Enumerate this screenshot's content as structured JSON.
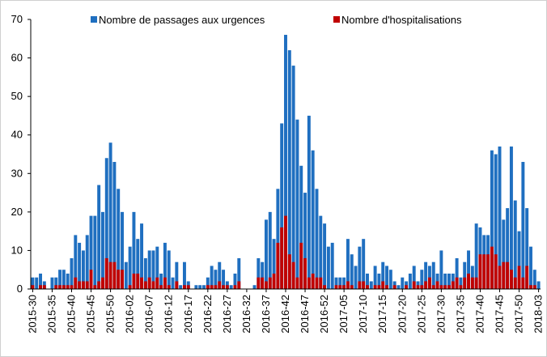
{
  "chart_data": {
    "type": "bar",
    "overlap": true,
    "categories": [
      "2015-30",
      null,
      null,
      null,
      null,
      "2015-35",
      null,
      null,
      null,
      null,
      "2015-40",
      null,
      null,
      null,
      null,
      "2015-45",
      null,
      null,
      null,
      null,
      "2015-50",
      null,
      null,
      null,
      null,
      "2016-02",
      null,
      null,
      null,
      null,
      "2016-07",
      null,
      null,
      null,
      null,
      "2016-12",
      null,
      null,
      null,
      null,
      "2016-17",
      null,
      null,
      null,
      null,
      "2016-22",
      null,
      null,
      null,
      null,
      "2016-27",
      null,
      null,
      null,
      null,
      "2016-32",
      null,
      null,
      null,
      null,
      "2016-37",
      null,
      null,
      null,
      null,
      "2016-42",
      null,
      null,
      null,
      null,
      "2016-47",
      null,
      null,
      null,
      null,
      "2016-52",
      null,
      null,
      null,
      null,
      "2017-05",
      null,
      null,
      null,
      null,
      "2017-10",
      null,
      null,
      null,
      null,
      "2017-15",
      null,
      null,
      null,
      null,
      "2017-20",
      null,
      null,
      null,
      null,
      "2017-25",
      null,
      null,
      null,
      null,
      "2017-30",
      null,
      null,
      null,
      null,
      "2017-35",
      null,
      null,
      null,
      null,
      "2017-40",
      null,
      null,
      null,
      null,
      "2017-45",
      null,
      null,
      null,
      null,
      "2017-50",
      null,
      null,
      null,
      null,
      "2018-03"
    ],
    "series": [
      {
        "name": "Nombre de passages aux urgences",
        "color": "#1f6fc0",
        "values": [
          3,
          3,
          4,
          2,
          0,
          3,
          3,
          5,
          5,
          4,
          8,
          14,
          12,
          10,
          14,
          19,
          19,
          27,
          20,
          34,
          38,
          33,
          26,
          20,
          7,
          11,
          20,
          13,
          17,
          8,
          10,
          10,
          11,
          4,
          12,
          10,
          3,
          7,
          1,
          7,
          2,
          0,
          1,
          1,
          1,
          3,
          6,
          5,
          7,
          5,
          2,
          1,
          4,
          8,
          0,
          0,
          0,
          1,
          8,
          7,
          18,
          20,
          13,
          26,
          43,
          66,
          62,
          58,
          44,
          32,
          25,
          45,
          36,
          26,
          19,
          17,
          11,
          12,
          3,
          3,
          3,
          13,
          9,
          6,
          11,
          13,
          4,
          2,
          6,
          4,
          7,
          6,
          5,
          2,
          1,
          3,
          2,
          4,
          6,
          2,
          5,
          7,
          6,
          7,
          4,
          10,
          4,
          4,
          4,
          8,
          3,
          7,
          10,
          6,
          17,
          16,
          14,
          14,
          36,
          35,
          37,
          18,
          21,
          37,
          23,
          15,
          33,
          21,
          11,
          5,
          2
        ]
      },
      {
        "name": "Nombre d'hospitalisations",
        "color": "#c00000",
        "values": [
          1,
          0,
          1,
          1,
          0,
          0,
          1,
          1,
          1,
          1,
          1,
          3,
          2,
          2,
          2,
          5,
          1,
          2,
          3,
          8,
          7,
          7,
          5,
          5,
          0,
          1,
          4,
          4,
          3,
          2,
          3,
          2,
          3,
          1,
          3,
          1,
          0,
          2,
          0,
          1,
          1,
          0,
          0,
          0,
          0,
          1,
          1,
          1,
          2,
          1,
          1,
          0,
          1,
          2,
          0,
          0,
          0,
          0,
          3,
          3,
          2,
          3,
          4,
          12,
          16,
          19,
          9,
          7,
          3,
          12,
          8,
          3,
          4,
          3,
          3,
          1,
          0,
          0,
          1,
          1,
          1,
          2,
          1,
          0,
          2,
          2,
          1,
          0,
          1,
          1,
          2,
          1,
          0,
          1,
          0,
          0,
          1,
          0,
          2,
          1,
          1,
          2,
          3,
          1,
          2,
          1,
          1,
          1,
          2,
          3,
          1,
          3,
          4,
          3,
          3,
          9,
          9,
          9,
          11,
          9,
          6,
          7,
          7,
          5,
          3,
          6,
          3,
          6,
          1,
          1,
          0
        ]
      }
    ],
    "ylim": [
      0,
      70
    ],
    "yticks": [
      0,
      10,
      20,
      30,
      40,
      50,
      60,
      70
    ],
    "grid": false,
    "legend": "top"
  }
}
